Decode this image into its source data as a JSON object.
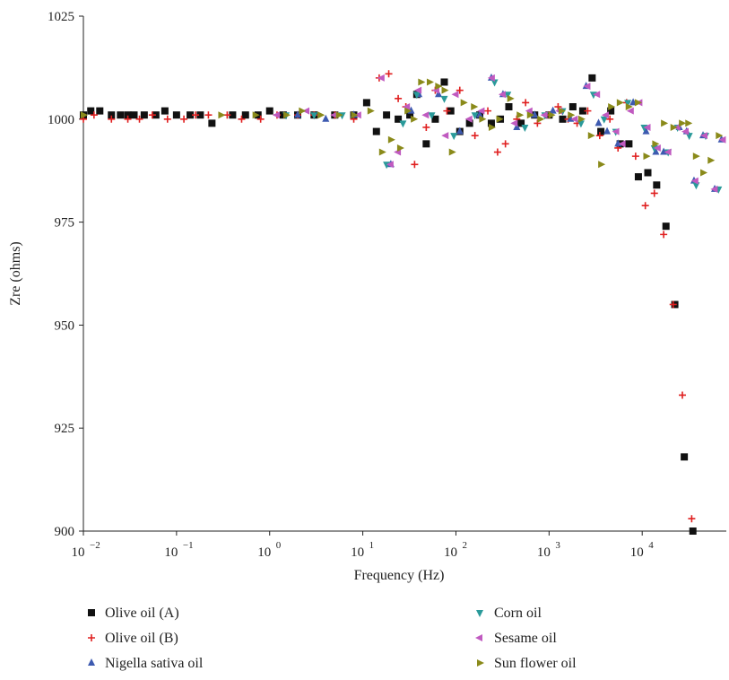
{
  "chart_data": {
    "type": "scatter",
    "title": "",
    "xlabel": "Frequency (Hz)",
    "ylabel": "Zre (ohms)",
    "x_scale": "log",
    "xlim": [
      0.01,
      80000
    ],
    "ylim": [
      900,
      1025
    ],
    "x_ticks": [
      {
        "value": 0.01,
        "base": "10",
        "exp": "−2"
      },
      {
        "value": 0.1,
        "base": "10",
        "exp": "−1"
      },
      {
        "value": 1,
        "base": "10",
        "exp": "0"
      },
      {
        "value": 10,
        "base": "10",
        "exp": "1"
      },
      {
        "value": 100,
        "base": "10",
        "exp": "2"
      },
      {
        "value": 1000,
        "base": "10",
        "exp": "3"
      },
      {
        "value": 10000,
        "base": "10",
        "exp": "4"
      }
    ],
    "y_ticks": [
      "900",
      "925",
      "950",
      "975",
      "1000",
      "1025"
    ],
    "grid": false,
    "legend_position": "bottom",
    "series": [
      {
        "name": "Olive oil (A)",
        "color": "#111111",
        "marker": "square",
        "points": [
          [
            0.01,
            1001
          ],
          [
            0.012,
            1002
          ],
          [
            0.015,
            1002
          ],
          [
            0.02,
            1001
          ],
          [
            0.025,
            1001
          ],
          [
            0.03,
            1001
          ],
          [
            0.035,
            1001
          ],
          [
            0.045,
            1001
          ],
          [
            0.06,
            1001
          ],
          [
            0.075,
            1002
          ],
          [
            0.1,
            1001
          ],
          [
            0.14,
            1001
          ],
          [
            0.18,
            1001
          ],
          [
            0.24,
            999
          ],
          [
            0.4,
            1001
          ],
          [
            0.55,
            1001
          ],
          [
            0.75,
            1001
          ],
          [
            1,
            1002
          ],
          [
            1.4,
            1001
          ],
          [
            2,
            1001
          ],
          [
            3,
            1001
          ],
          [
            5,
            1001
          ],
          [
            8,
            1001
          ],
          [
            11,
            1004
          ],
          [
            14,
            997
          ],
          [
            18,
            1001
          ],
          [
            24,
            1000
          ],
          [
            32,
            1001
          ],
          [
            38,
            1006
          ],
          [
            48,
            994
          ],
          [
            60,
            1000
          ],
          [
            75,
            1009
          ],
          [
            88,
            1002
          ],
          [
            110,
            997
          ],
          [
            140,
            999
          ],
          [
            180,
            1001
          ],
          [
            240,
            999
          ],
          [
            300,
            1000
          ],
          [
            370,
            1003
          ],
          [
            500,
            999
          ],
          [
            700,
            1001
          ],
          [
            1000,
            1001
          ],
          [
            1400,
            1000
          ],
          [
            1800,
            1003
          ],
          [
            2300,
            1002
          ],
          [
            2900,
            1010
          ],
          [
            3600,
            997
          ],
          [
            4600,
            1002
          ],
          [
            5800,
            994
          ],
          [
            7200,
            994
          ],
          [
            9100,
            986
          ],
          [
            11500,
            987
          ],
          [
            14300,
            984
          ],
          [
            18000,
            974
          ],
          [
            22400,
            955
          ],
          [
            28300,
            918
          ],
          [
            35000,
            900
          ]
        ]
      },
      {
        "name": "Olive oil (B)",
        "color": "#e02020",
        "marker": "plus",
        "points": [
          [
            0.01,
            1000
          ],
          [
            0.013,
            1001
          ],
          [
            0.02,
            1000
          ],
          [
            0.03,
            1000
          ],
          [
            0.04,
            1000
          ],
          [
            0.055,
            1001
          ],
          [
            0.08,
            1000
          ],
          [
            0.12,
            1000
          ],
          [
            0.16,
            1001
          ],
          [
            0.22,
            1001
          ],
          [
            0.35,
            1001
          ],
          [
            0.5,
            1000
          ],
          [
            0.8,
            1000
          ],
          [
            1.2,
            1001
          ],
          [
            2,
            1001
          ],
          [
            3,
            1001
          ],
          [
            5,
            1001
          ],
          [
            8,
            1000
          ],
          [
            15,
            1010
          ],
          [
            19,
            1011
          ],
          [
            24,
            1005
          ],
          [
            29,
            1003
          ],
          [
            36,
            989
          ],
          [
            48,
            998
          ],
          [
            60,
            1007
          ],
          [
            80,
            1002
          ],
          [
            110,
            1007
          ],
          [
            160,
            996
          ],
          [
            220,
            1002
          ],
          [
            280,
            992
          ],
          [
            340,
            994
          ],
          [
            450,
            1000
          ],
          [
            560,
            1004
          ],
          [
            750,
            999
          ],
          [
            1000,
            1001
          ],
          [
            1250,
            1003
          ],
          [
            1600,
            1000
          ],
          [
            2000,
            999
          ],
          [
            2600,
            1002
          ],
          [
            3500,
            996
          ],
          [
            4500,
            1000
          ],
          [
            5500,
            993
          ],
          [
            6800,
            1004
          ],
          [
            8500,
            991
          ],
          [
            10800,
            979
          ],
          [
            13500,
            982
          ],
          [
            17000,
            972
          ],
          [
            21500,
            955
          ],
          [
            27000,
            933
          ],
          [
            34000,
            903
          ]
        ]
      },
      {
        "name": "Nigella sativa oil",
        "color": "#3d5ab0",
        "marker": "triangle-up",
        "points": [
          [
            2,
            1001
          ],
          [
            4,
            1000
          ],
          [
            8,
            1001
          ],
          [
            20,
            989
          ],
          [
            33,
            1002
          ],
          [
            40,
            1006
          ],
          [
            65,
            1006
          ],
          [
            110,
            997
          ],
          [
            180,
            1001
          ],
          [
            240,
            1010
          ],
          [
            320,
            1006
          ],
          [
            450,
            998
          ],
          [
            700,
            1001
          ],
          [
            1100,
            1002
          ],
          [
            1700,
            1000
          ],
          [
            2500,
            1008
          ],
          [
            3400,
            999
          ],
          [
            4200,
            997
          ],
          [
            5500,
            994
          ],
          [
            8000,
            1004
          ],
          [
            11000,
            997
          ],
          [
            14000,
            992
          ],
          [
            17000,
            992
          ],
          [
            25000,
            998
          ],
          [
            30000,
            997
          ],
          [
            36000,
            985
          ],
          [
            45000,
            996
          ],
          [
            60000,
            983
          ],
          [
            71000,
            995
          ]
        ]
      },
      {
        "name": "Corn oil",
        "color": "#2a9a9a",
        "marker": "triangle-down",
        "points": [
          [
            1.5,
            1001
          ],
          [
            3,
            1001
          ],
          [
            6,
            1001
          ],
          [
            18,
            989
          ],
          [
            27,
            999
          ],
          [
            38,
            1006
          ],
          [
            55,
            1001
          ],
          [
            75,
            1005
          ],
          [
            95,
            996
          ],
          [
            160,
            1001
          ],
          [
            260,
            1009
          ],
          [
            360,
            1006
          ],
          [
            550,
            998
          ],
          [
            900,
            1001
          ],
          [
            1400,
            1002
          ],
          [
            2200,
            999
          ],
          [
            3000,
            1006
          ],
          [
            3900,
            1000
          ],
          [
            5200,
            997
          ],
          [
            7000,
            1004
          ],
          [
            10500,
            998
          ],
          [
            13500,
            993
          ],
          [
            19000,
            992
          ],
          [
            24000,
            998
          ],
          [
            32000,
            996
          ],
          [
            38000,
            984
          ],
          [
            48000,
            996
          ],
          [
            66000,
            983
          ]
        ]
      },
      {
        "name": "Sesame oil",
        "color": "#c05ac0",
        "marker": "triangle-left",
        "points": [
          [
            1.2,
            1001
          ],
          [
            2.5,
            1002
          ],
          [
            5,
            1001
          ],
          [
            9,
            1001
          ],
          [
            16,
            1010
          ],
          [
            20,
            989
          ],
          [
            24,
            992
          ],
          [
            30,
            1003
          ],
          [
            40,
            1007
          ],
          [
            48,
            1001
          ],
          [
            62,
            1007
          ],
          [
            78,
            996
          ],
          [
            100,
            1006
          ],
          [
            140,
            1000
          ],
          [
            190,
            1002
          ],
          [
            245,
            1010
          ],
          [
            320,
            1006
          ],
          [
            430,
            999
          ],
          [
            620,
            1002
          ],
          [
            900,
            1001
          ],
          [
            1300,
            1002
          ],
          [
            1900,
            1000
          ],
          [
            2600,
            1008
          ],
          [
            3300,
            1006
          ],
          [
            4100,
            1001
          ],
          [
            5300,
            997
          ],
          [
            6200,
            994
          ],
          [
            7600,
            1002
          ],
          [
            9400,
            1004
          ],
          [
            11500,
            998
          ],
          [
            14800,
            993
          ],
          [
            19200,
            992
          ],
          [
            24000,
            998
          ],
          [
            29500,
            997
          ],
          [
            37500,
            985
          ],
          [
            47000,
            996
          ],
          [
            60500,
            983
          ],
          [
            74000,
            995
          ]
        ]
      },
      {
        "name": "Sun flower oil",
        "color": "#8a8a1a",
        "marker": "triangle-right",
        "points": [
          [
            0.01,
            1001
          ],
          [
            0.3,
            1001
          ],
          [
            0.7,
            1001
          ],
          [
            1.5,
            1001
          ],
          [
            2.2,
            1002
          ],
          [
            3.5,
            1001
          ],
          [
            5.5,
            1001
          ],
          [
            8,
            1001
          ],
          [
            12,
            1002
          ],
          [
            16,
            992
          ],
          [
            20,
            995
          ],
          [
            25,
            993
          ],
          [
            30,
            1002
          ],
          [
            35,
            1000
          ],
          [
            42,
            1009
          ],
          [
            52,
            1009
          ],
          [
            64,
            1008
          ],
          [
            75,
            1007
          ],
          [
            90,
            992
          ],
          [
            120,
            1004
          ],
          [
            155,
            1003
          ],
          [
            190,
            1000
          ],
          [
            240,
            998
          ],
          [
            290,
            1000
          ],
          [
            380,
            1005
          ],
          [
            480,
            1001
          ],
          [
            620,
            1001
          ],
          [
            800,
            1000
          ],
          [
            1050,
            1001
          ],
          [
            1350,
            1002
          ],
          [
            1700,
            1001
          ],
          [
            2200,
            1000
          ],
          [
            2800,
            996
          ],
          [
            3600,
            989
          ],
          [
            4600,
            1003
          ],
          [
            5700,
            1004
          ],
          [
            7100,
            1003
          ],
          [
            8900,
            1004
          ],
          [
            11000,
            991
          ],
          [
            13700,
            994
          ],
          [
            17000,
            999
          ],
          [
            21500,
            998
          ],
          [
            26500,
            999
          ],
          [
            31000,
            999
          ],
          [
            37500,
            991
          ],
          [
            45000,
            987
          ],
          [
            54000,
            990
          ],
          [
            66000,
            996
          ]
        ]
      }
    ]
  }
}
